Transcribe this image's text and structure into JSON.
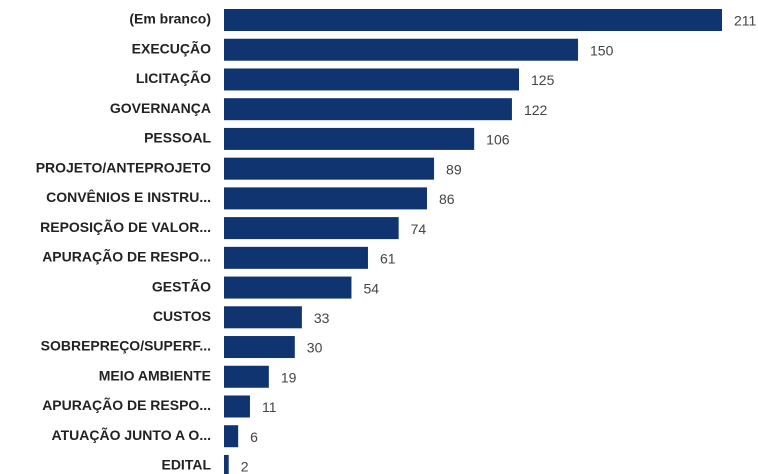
{
  "chart_data": {
    "type": "barh",
    "categories": [
      "(Em branco)",
      "EXECUÇÃO",
      "LICITAÇÃO",
      "GOVERNANÇA",
      "PESSOAL",
      "PROJETO/ANTEPROJETO",
      "CONVÊNIOS E INSTRU...",
      "REPOSIÇÃO DE VALOR...",
      "APURAÇÃO DE RESPO...",
      "GESTÃO",
      "CUSTOS",
      "SOBREPREÇO/SUPERF...",
      "MEIO AMBIENTE",
      "APURAÇÃO DE RESPO...",
      "ATUAÇÃO JUNTO A O...",
      "EDITAL"
    ],
    "values": [
      211,
      150,
      125,
      122,
      106,
      89,
      86,
      74,
      61,
      54,
      33,
      30,
      19,
      11,
      6,
      2
    ],
    "color": "#0f3470"
  }
}
